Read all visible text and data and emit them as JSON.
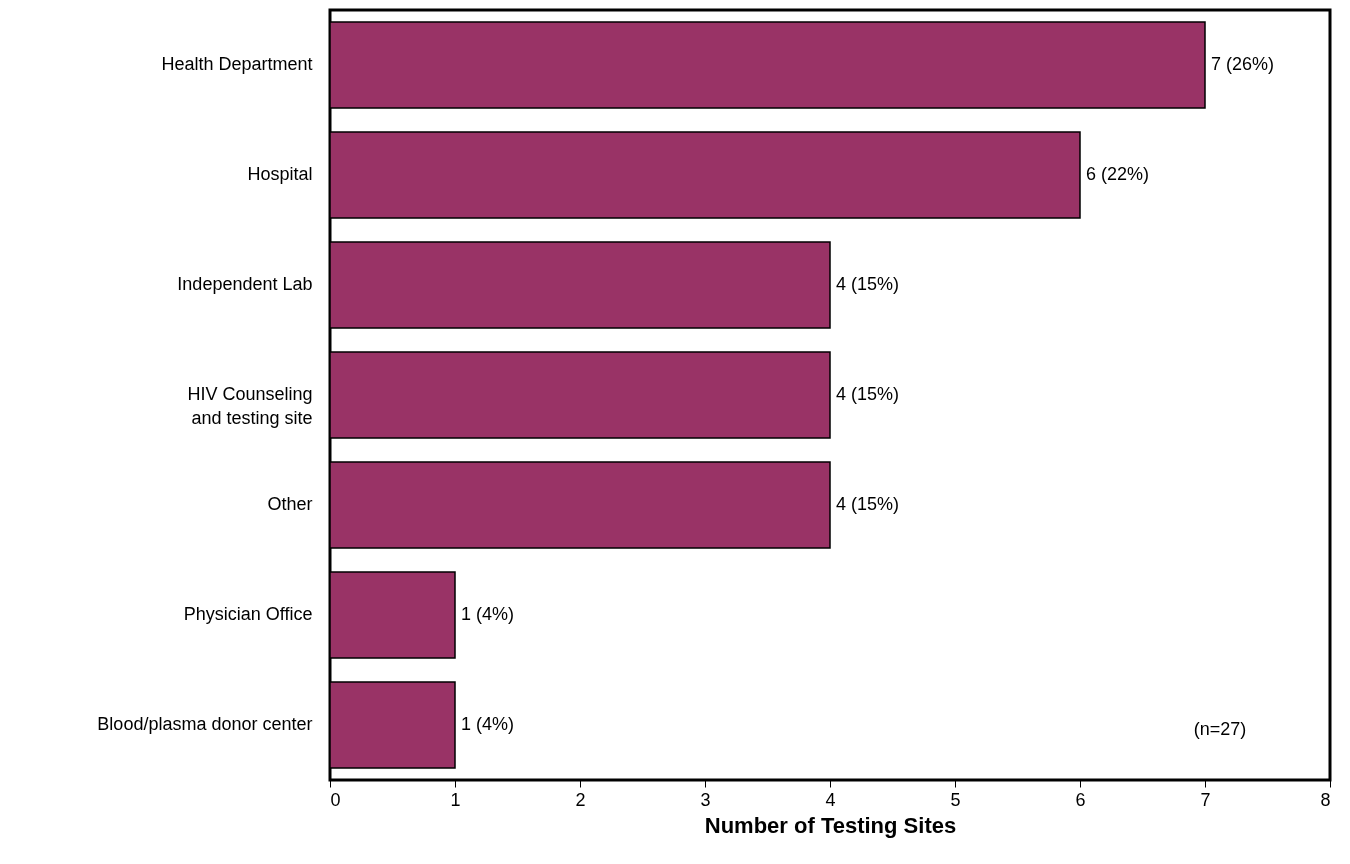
{
  "chart_data": {
    "type": "bar",
    "orientation": "horizontal",
    "xlabel": "Number of Testing Sites",
    "categories": [
      "Health Department",
      "Hospital",
      "Independent Lab",
      "HIV Counseling\nand testing site",
      "Other",
      "Physician Office",
      "Blood/plasma donor center"
    ],
    "values": [
      7,
      6,
      4,
      4,
      4,
      1,
      1
    ],
    "value_labels": [
      "7 (26%)",
      "6 (22%)",
      "4 (15%)",
      "4 (15%)",
      "4 (15%)",
      "1 (4%)",
      "1 (4%)"
    ],
    "color": "#993366",
    "xlim": [
      0,
      8
    ],
    "xticks": [
      0,
      1,
      2,
      3,
      4,
      5,
      6,
      7,
      8
    ],
    "grid": false,
    "annotations": [
      "(n=27)"
    ]
  }
}
